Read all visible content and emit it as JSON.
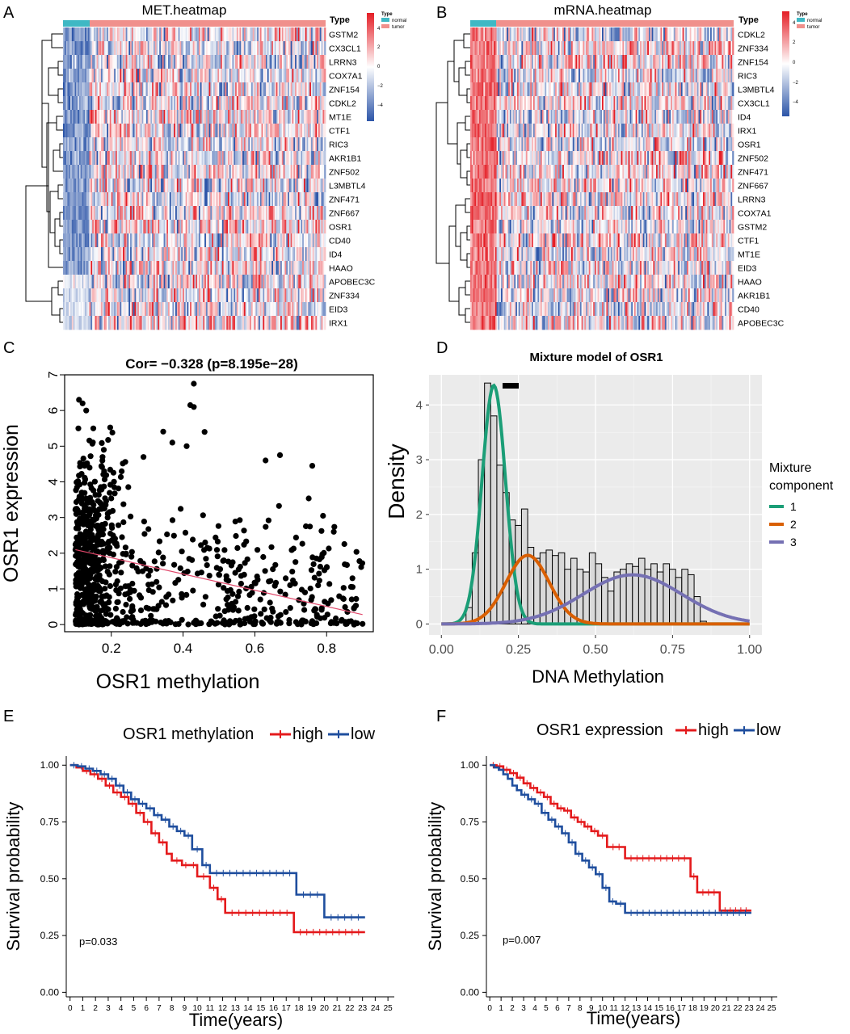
{
  "panels": {
    "a": {
      "letter": "A"
    },
    "b": {
      "letter": "B"
    },
    "c": {
      "letter": "C"
    },
    "d": {
      "letter": "D"
    },
    "e": {
      "letter": "E"
    },
    "f": {
      "letter": "F"
    }
  },
  "legend_common": {
    "type_label": "Type",
    "normal_label": "normal",
    "tumor_label": "tumor",
    "normal_color": "#3FB8C4",
    "tumor_color": "#F0908C",
    "scale_ticks": [
      "4",
      "2",
      "0",
      "−2",
      "−4"
    ]
  },
  "chart_data": [
    {
      "id": "met_heatmap",
      "type": "heatmap",
      "title": "MET.heatmap",
      "annotation_label": "Type",
      "rows": [
        "GSTM2",
        "CX3CL1",
        "LRRN3",
        "COX7A1",
        "ZNF154",
        "CDKL2",
        "MT1E",
        "CTF1",
        "RIC3",
        "AKR1B1",
        "ZNF502",
        "L3MBTL4",
        "ZNF471",
        "ZNF667",
        "OSR1",
        "CD40",
        "ID4",
        "HAAO",
        "APOBEC3C",
        "ZNF334",
        "EID3",
        "IRX1"
      ],
      "highlight_row": "OSR1",
      "highlight_color": "#E31A1C",
      "color_scale": {
        "low": "#2C55A8",
        "mid": "#FFFFFF",
        "high": "#E41E26",
        "range": [
          -4,
          4
        ]
      },
      "normal_pattern": "blue",
      "tumor_pattern": "mixed"
    },
    {
      "id": "mrna_heatmap",
      "type": "heatmap",
      "title": "mRNA.heatmap",
      "annotation_label": "Type",
      "rows": [
        "CDKL2",
        "ZNF334",
        "ZNF154",
        "RIC3",
        "L3MBTL4",
        "CX3CL1",
        "ID4",
        "IRX1",
        "OSR1",
        "ZNF502",
        "ZNF471",
        "ZNF667",
        "LRRN3",
        "COX7A1",
        "GSTM2",
        "CTF1",
        "MT1E",
        "EID3",
        "HAAO",
        "AKR1B1",
        "CD40",
        "APOBEC3C"
      ],
      "highlight_row": "OSR1",
      "highlight_color": "#E31A1C",
      "color_scale": {
        "low": "#2C55A8",
        "mid": "#FFFFFF",
        "high": "#E41E26",
        "range": [
          -4,
          4
        ]
      },
      "normal_pattern": "red",
      "tumor_pattern": "mixed"
    },
    {
      "id": "scatter",
      "type": "scatter",
      "title": "Cor= −0.328 (p=8.195e−28)",
      "xlabel": "OSR1 methylation",
      "ylabel": "OSR1 expression",
      "xlim": [
        0.07,
        0.93
      ],
      "ylim": [
        -0.2,
        7.0
      ],
      "xticks": [
        0.2,
        0.4,
        0.6,
        0.8
      ],
      "xtick_labels": [
        "0.2",
        "0.4",
        "0.6",
        "0.8"
      ],
      "yticks": [
        0,
        1,
        2,
        3,
        4,
        5,
        6,
        7
      ],
      "ytick_labels": [
        "0",
        "1",
        "2",
        "3",
        "4",
        "5",
        "6",
        "7"
      ],
      "regression": {
        "x": [
          0.1,
          0.9
        ],
        "y": [
          2.1,
          0.28
        ],
        "color": "#E0476A"
      },
      "point_color": "#000000",
      "n_points_approx": 1000,
      "highlight_points": [
        {
          "x": 0.11,
          "y": 6.3
        },
        {
          "x": 0.12,
          "y": 6.2
        },
        {
          "x": 0.13,
          "y": 6.0
        },
        {
          "x": 0.15,
          "y": 5.5
        },
        {
          "x": 0.43,
          "y": 6.75
        },
        {
          "x": 0.42,
          "y": 6.15
        },
        {
          "x": 0.43,
          "y": 6.1
        },
        {
          "x": 0.46,
          "y": 5.4
        },
        {
          "x": 0.37,
          "y": 5.1
        },
        {
          "x": 0.41,
          "y": 5.0
        },
        {
          "x": 0.67,
          "y": 4.75
        },
        {
          "x": 0.76,
          "y": 4.45
        },
        {
          "x": 0.63,
          "y": 4.6
        },
        {
          "x": 0.79,
          "y": 3.05
        },
        {
          "x": 0.82,
          "y": 2.6
        },
        {
          "x": 0.8,
          "y": 1.6
        },
        {
          "x": 0.88,
          "y": 0.05
        },
        {
          "x": 0.9,
          "y": 0.02
        }
      ]
    },
    {
      "id": "mixture",
      "type": "bar",
      "title": "Mixture model of OSR1",
      "xlabel": "DNA Methylation",
      "ylabel": "Density",
      "xlim": [
        -0.04,
        1.04
      ],
      "ylim": [
        -0.2,
        4.55
      ],
      "xticks": [
        0.0,
        0.25,
        0.5,
        0.75,
        1.0
      ],
      "xtick_labels": [
        "0.00",
        "0.25",
        "0.50",
        "0.75",
        "1.00"
      ],
      "yticks": [
        0,
        1,
        2,
        3,
        4
      ],
      "ytick_labels": [
        "0",
        "1",
        "2",
        "3",
        "4"
      ],
      "bin_width": 0.02,
      "bin_start": 0.08,
      "histogram": [
        0.3,
        1.3,
        3.0,
        4.4,
        3.8,
        2.9,
        2.4,
        1.9,
        1.8,
        2.1,
        1.4,
        1.2,
        1.3,
        1.35,
        1.25,
        1.3,
        1.0,
        1.2,
        1.0,
        0.95,
        1.3,
        1.1,
        0.85,
        0.6,
        0.95,
        1.0,
        1.1,
        1.05,
        1.2,
        1.0,
        1.1,
        0.95,
        1.1,
        1.0,
        0.85,
        1.0,
        0.9,
        0.5,
        0.05
      ],
      "legend_title": "Mixture\ncomponent",
      "components": [
        {
          "name": "1",
          "mean": 0.17,
          "sd": 0.038,
          "weight": 0.415,
          "color": "#1B9E77"
        },
        {
          "name": "2",
          "mean": 0.28,
          "sd": 0.07,
          "weight": 0.22,
          "color": "#D95F02"
        },
        {
          "name": "3",
          "mean": 0.62,
          "sd": 0.16,
          "weight": 0.36,
          "color": "#7570B3"
        }
      ]
    },
    {
      "id": "km_methylation",
      "type": "line",
      "legend_title": "OSR1 methylation",
      "xlabel": "Time(years)",
      "ylabel": "Survival probability",
      "xlim": [
        -0.3,
        25.5
      ],
      "ylim": [
        -0.02,
        1.04
      ],
      "xticks": [
        0,
        1,
        2,
        3,
        4,
        5,
        6,
        7,
        8,
        9,
        10,
        11,
        12,
        13,
        14,
        15,
        16,
        17,
        18,
        19,
        20,
        21,
        22,
        23,
        24,
        25
      ],
      "xtick_labels": [
        "0",
        "1",
        "2",
        "3",
        "4",
        "5",
        "6",
        "7",
        "8",
        "9",
        "10",
        "11",
        "12",
        "13",
        "14",
        "15",
        "16",
        "17",
        "18",
        "19",
        "20",
        "21",
        "22",
        "23",
        "24",
        "25"
      ],
      "yticks": [
        0,
        0.25,
        0.5,
        0.75,
        1.0
      ],
      "ytick_labels": [
        "0.00",
        "0.25",
        "0.50",
        "0.75",
        "1.00"
      ],
      "pvalue": "p=0.033",
      "series": [
        {
          "name": "high",
          "color": "#E41A1C",
          "times": [
            0,
            0.5,
            1.0,
            1.6,
            2.2,
            2.8,
            3.4,
            4.0,
            4.6,
            5.2,
            5.8,
            6.4,
            7.0,
            7.6,
            8.0,
            8.8,
            9.4,
            10.0,
            11.0,
            11.6,
            12.2,
            17.6,
            23.2
          ],
          "survival": [
            1.0,
            0.99,
            0.975,
            0.96,
            0.94,
            0.91,
            0.88,
            0.86,
            0.83,
            0.79,
            0.75,
            0.7,
            0.66,
            0.61,
            0.58,
            0.56,
            0.56,
            0.51,
            0.46,
            0.41,
            0.35,
            0.265,
            0.265
          ]
        },
        {
          "name": "low",
          "color": "#1F4E9E",
          "times": [
            0,
            0.6,
            1.2,
            1.8,
            2.4,
            3.0,
            3.6,
            4.2,
            4.8,
            5.4,
            6.0,
            6.6,
            7.2,
            7.8,
            8.4,
            9.0,
            9.6,
            10.4,
            11.0,
            17.8,
            20.0,
            23.2
          ],
          "survival": [
            1.0,
            0.995,
            0.985,
            0.975,
            0.96,
            0.94,
            0.91,
            0.88,
            0.85,
            0.83,
            0.81,
            0.78,
            0.76,
            0.73,
            0.71,
            0.69,
            0.63,
            0.56,
            0.525,
            0.43,
            0.33,
            0.33
          ]
        }
      ]
    },
    {
      "id": "km_expression",
      "type": "line",
      "legend_title": "OSR1 expression",
      "xlabel": "Time(years)",
      "ylabel": "Survival probability",
      "xlim": [
        -0.3,
        25.5
      ],
      "ylim": [
        -0.02,
        1.04
      ],
      "xticks": [
        0,
        1,
        2,
        3,
        4,
        5,
        6,
        7,
        8,
        9,
        10,
        11,
        12,
        13,
        14,
        15,
        16,
        17,
        18,
        19,
        20,
        21,
        22,
        23,
        24,
        25
      ],
      "xtick_labels": [
        "0",
        "1",
        "2",
        "3",
        "4",
        "5",
        "6",
        "7",
        "8",
        "9",
        "10",
        "11",
        "12",
        "13",
        "14",
        "15",
        "16",
        "17",
        "18",
        "19",
        "20",
        "21",
        "22",
        "23",
        "24",
        "25"
      ],
      "yticks": [
        0,
        0.25,
        0.5,
        0.75,
        1.0
      ],
      "ytick_labels": [
        "0.00",
        "0.25",
        "0.50",
        "0.75",
        "1.00"
      ],
      "pvalue": "p=0.007",
      "series": [
        {
          "name": "high",
          "color": "#E41A1C",
          "times": [
            0,
            0.6,
            1.2,
            1.8,
            2.4,
            3.0,
            3.6,
            4.2,
            4.8,
            5.4,
            6.0,
            6.6,
            7.2,
            7.8,
            8.4,
            9.0,
            9.6,
            10.4,
            12.0,
            17.8,
            18.4,
            20.4,
            23.2
          ],
          "survival": [
            1.0,
            0.995,
            0.98,
            0.965,
            0.945,
            0.92,
            0.9,
            0.88,
            0.86,
            0.83,
            0.81,
            0.8,
            0.77,
            0.75,
            0.73,
            0.71,
            0.69,
            0.64,
            0.59,
            0.51,
            0.44,
            0.36,
            0.36
          ]
        },
        {
          "name": "low",
          "color": "#1F4E9E",
          "times": [
            0,
            0.4,
            0.8,
            1.2,
            1.6,
            2.0,
            2.4,
            2.8,
            3.4,
            4.0,
            4.6,
            5.2,
            5.8,
            6.4,
            7.0,
            7.6,
            8.2,
            8.8,
            9.4,
            10.0,
            10.6,
            11.2,
            12.0,
            23.2
          ],
          "survival": [
            1.0,
            0.99,
            0.98,
            0.96,
            0.94,
            0.91,
            0.89,
            0.87,
            0.85,
            0.83,
            0.79,
            0.76,
            0.73,
            0.7,
            0.66,
            0.61,
            0.58,
            0.55,
            0.52,
            0.46,
            0.4,
            0.39,
            0.35,
            0.35
          ]
        }
      ]
    }
  ]
}
